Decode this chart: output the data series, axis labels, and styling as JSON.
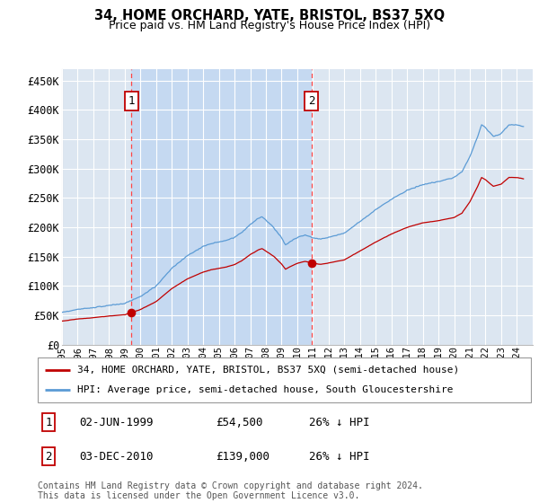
{
  "title": "34, HOME ORCHARD, YATE, BRISTOL, BS37 5XQ",
  "subtitle": "Price paid vs. HM Land Registry's House Price Index (HPI)",
  "ylim": [
    0,
    470000
  ],
  "yticks": [
    0,
    50000,
    100000,
    150000,
    200000,
    250000,
    300000,
    350000,
    400000,
    450000
  ],
  "ytick_labels": [
    "£0",
    "£50K",
    "£100K",
    "£150K",
    "£200K",
    "£250K",
    "£300K",
    "£350K",
    "£400K",
    "£450K"
  ],
  "hpi_color": "#5b9bd5",
  "sale_color": "#c00000",
  "vline_color": "#ff4444",
  "grid_color": "#ffffff",
  "plot_bg": "#dce6f1",
  "shade_color": "#c5d9f1",
  "legend_label_sale": "34, HOME ORCHARD, YATE, BRISTOL, BS37 5XQ (semi-detached house)",
  "legend_label_hpi": "HPI: Average price, semi-detached house, South Gloucestershire",
  "sale1_date_num": 1999.42,
  "sale1_price": 54500,
  "sale2_date_num": 2010.92,
  "sale2_price": 139000,
  "xmin": 1995,
  "xmax": 2025,
  "footer": "Contains HM Land Registry data © Crown copyright and database right 2024.\nThis data is licensed under the Open Government Licence v3.0.",
  "table_rows": [
    {
      "idx": "1",
      "date": "02-JUN-1999",
      "price": "£54,500",
      "note": "26% ↓ HPI"
    },
    {
      "idx": "2",
      "date": "03-DEC-2010",
      "price": "£139,000",
      "note": "26% ↓ HPI"
    }
  ]
}
